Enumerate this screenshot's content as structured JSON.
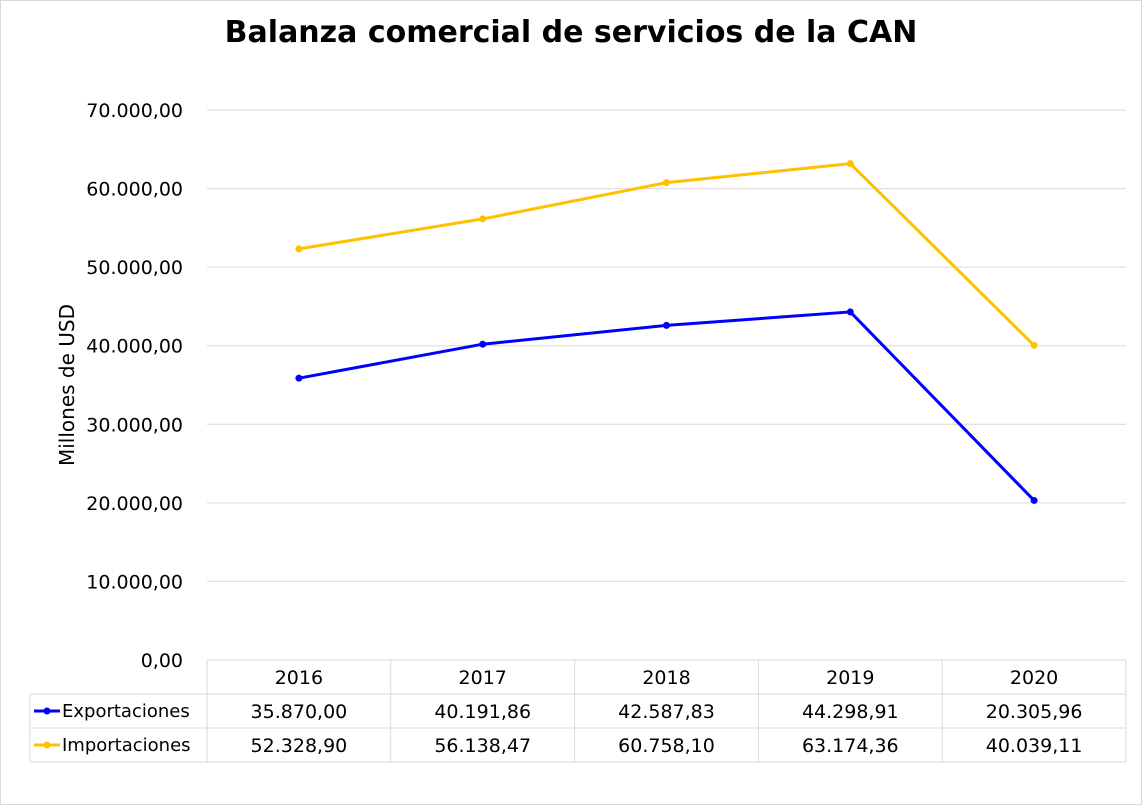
{
  "chart_data": {
    "type": "line",
    "title": "Balanza comercial de servicios de la CAN",
    "ylabel": "Millones de USD",
    "xlabel": "",
    "categories": [
      "2016",
      "2017",
      "2018",
      "2019",
      "2020"
    ],
    "ylim": [
      0,
      70000
    ],
    "yticks": [
      0,
      10000,
      20000,
      30000,
      40000,
      50000,
      60000,
      70000
    ],
    "ytick_labels": [
      "0,00",
      "10.000,00",
      "20.000,00",
      "30.000,00",
      "40.000,00",
      "50.000,00",
      "60.000,00",
      "70.000,00"
    ],
    "grid": true,
    "legend": "data-table",
    "series": [
      {
        "name": "Exportaciones",
        "color": "#0000ff",
        "values": [
          35870.0,
          40191.86,
          42587.83,
          44298.91,
          20305.96
        ],
        "labels": [
          "35.870,00",
          "40.191,86",
          "42.587,83",
          "44.298,91",
          "20.305,96"
        ]
      },
      {
        "name": "Importaciones",
        "color": "#ffc000",
        "values": [
          52328.9,
          56138.47,
          60758.1,
          63174.36,
          40039.11
        ],
        "labels": [
          "52.328,90",
          "56.138,47",
          "60.758,10",
          "63.174,36",
          "40.039,11"
        ]
      }
    ]
  }
}
